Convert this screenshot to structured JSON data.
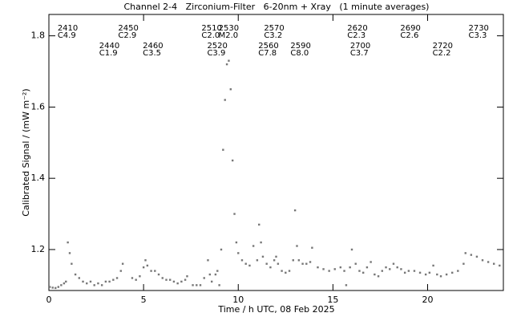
{
  "chart_data": {
    "type": "scatter",
    "title": "Channel 2-4   Zirconium-Filter   6-20nm + Xray   (1 minute averages)",
    "x_label": "Time / h UTC, 08 Feb 2025",
    "y_label": "Calibrated Signal / (mW m⁻²)",
    "color": "#777777",
    "xlim": [
      0,
      24
    ],
    "ylim": [
      1.085,
      1.86
    ],
    "xticks": [
      0,
      5,
      10,
      15,
      20
    ],
    "yticks": [
      1.2,
      1.4,
      1.6,
      1.8
    ],
    "x": [
      0.05,
      0.2,
      0.35,
      0.5,
      0.65,
      0.8,
      0.9,
      1.0,
      1.1,
      1.2,
      1.4,
      1.6,
      1.8,
      2.0,
      2.2,
      2.4,
      2.6,
      2.8,
      3.0,
      3.2,
      3.4,
      3.6,
      3.8,
      3.9,
      4.4,
      4.6,
      4.8,
      5.0,
      5.1,
      5.2,
      5.4,
      5.6,
      5.8,
      6.0,
      6.2,
      6.4,
      6.6,
      6.8,
      7.0,
      7.2,
      7.3,
      7.6,
      7.8,
      8.0,
      8.2,
      8.4,
      8.5,
      8.6,
      8.8,
      8.9,
      9.0,
      9.1,
      9.2,
      9.3,
      9.4,
      9.5,
      9.6,
      9.7,
      9.8,
      9.9,
      10.0,
      10.2,
      10.4,
      10.6,
      10.8,
      11.0,
      11.1,
      11.2,
      11.3,
      11.5,
      11.7,
      11.9,
      12.0,
      12.1,
      12.3,
      12.5,
      12.7,
      12.9,
      13.0,
      13.1,
      13.2,
      13.4,
      13.6,
      13.8,
      13.9,
      14.2,
      14.5,
      14.8,
      15.1,
      15.4,
      15.6,
      15.7,
      15.9,
      16.0,
      16.2,
      16.4,
      16.6,
      16.8,
      17.0,
      17.2,
      17.4,
      17.6,
      17.8,
      18.0,
      18.2,
      18.4,
      18.6,
      18.8,
      19.0,
      19.3,
      19.6,
      19.9,
      20.1,
      20.3,
      20.5,
      20.7,
      21.0,
      21.3,
      21.6,
      21.9,
      22.0,
      22.3,
      22.6,
      22.9,
      23.2,
      23.5,
      23.8
    ],
    "values": [
      1.095,
      1.093,
      1.092,
      1.095,
      1.1,
      1.105,
      1.11,
      1.22,
      1.19,
      1.16,
      1.13,
      1.12,
      1.11,
      1.105,
      1.11,
      1.1,
      1.105,
      1.1,
      1.11,
      1.11,
      1.115,
      1.12,
      1.14,
      1.16,
      1.12,
      1.115,
      1.125,
      1.15,
      1.17,
      1.155,
      1.14,
      1.14,
      1.13,
      1.12,
      1.115,
      1.115,
      1.11,
      1.105,
      1.11,
      1.115,
      1.125,
      1.1,
      1.1,
      1.1,
      1.12,
      1.17,
      1.13,
      1.11,
      1.13,
      1.14,
      1.1,
      1.2,
      1.48,
      1.62,
      1.72,
      1.73,
      1.65,
      1.45,
      1.3,
      1.22,
      1.19,
      1.17,
      1.16,
      1.155,
      1.21,
      1.17,
      1.27,
      1.22,
      1.18,
      1.16,
      1.15,
      1.17,
      1.18,
      1.16,
      1.14,
      1.135,
      1.14,
      1.17,
      1.31,
      1.21,
      1.17,
      1.16,
      1.16,
      1.165,
      1.205,
      1.15,
      1.145,
      1.14,
      1.145,
      1.15,
      1.14,
      1.1,
      1.15,
      1.2,
      1.16,
      1.14,
      1.135,
      1.15,
      1.165,
      1.13,
      1.125,
      1.14,
      1.15,
      1.145,
      1.16,
      1.15,
      1.145,
      1.135,
      1.14,
      1.14,
      1.135,
      1.13,
      1.135,
      1.155,
      1.13,
      1.125,
      1.13,
      1.135,
      1.14,
      1.16,
      1.19,
      1.185,
      1.18,
      1.17,
      1.165,
      1.16,
      1.155
    ],
    "annotations": [
      {
        "x": 0.5,
        "id": "2410",
        "class": "C4.9"
      },
      {
        "x": 2.7,
        "id": "2440",
        "class": "C1.9"
      },
      {
        "x": 3.7,
        "id": "2450",
        "class": "C2.9"
      },
      {
        "x": 5.0,
        "id": "2460",
        "class": "C3.5"
      },
      {
        "x": 8.1,
        "id": "2510",
        "class": "C2.0"
      },
      {
        "x": 8.4,
        "id": "2520",
        "class": "C3.9"
      },
      {
        "x": 9.0,
        "id": "2530",
        "class": "M2.0"
      },
      {
        "x": 11.1,
        "id": "2560",
        "class": "C7.8"
      },
      {
        "x": 11.4,
        "id": "2570",
        "class": "C3.2"
      },
      {
        "x": 12.8,
        "id": "2590",
        "class": "C8.0"
      },
      {
        "x": 15.8,
        "id": "2620",
        "class": "C2.3"
      },
      {
        "x": 15.95,
        "id": "2700",
        "class": "C3.7"
      },
      {
        "x": 18.6,
        "id": "2690",
        "class": "C2.6"
      },
      {
        "x": 20.3,
        "id": "2720",
        "class": "C2.2"
      },
      {
        "x": 22.2,
        "id": "2730",
        "class": "C3.3"
      }
    ]
  }
}
